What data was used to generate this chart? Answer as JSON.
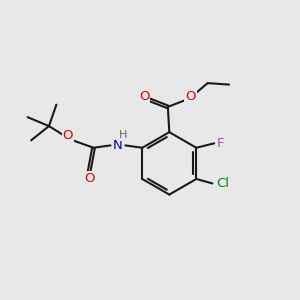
{
  "bg_color": "#e8e8e8",
  "bond_color": "#1a1a1a",
  "atom_colors": {
    "O": "#dd0000",
    "N": "#0000cc",
    "F": "#bb44bb",
    "Cl": "#008800",
    "H": "#666666",
    "C": "#1a1a1a"
  },
  "font_size_atom": 9.5,
  "font_size_H": 8.0,
  "lw": 1.5
}
